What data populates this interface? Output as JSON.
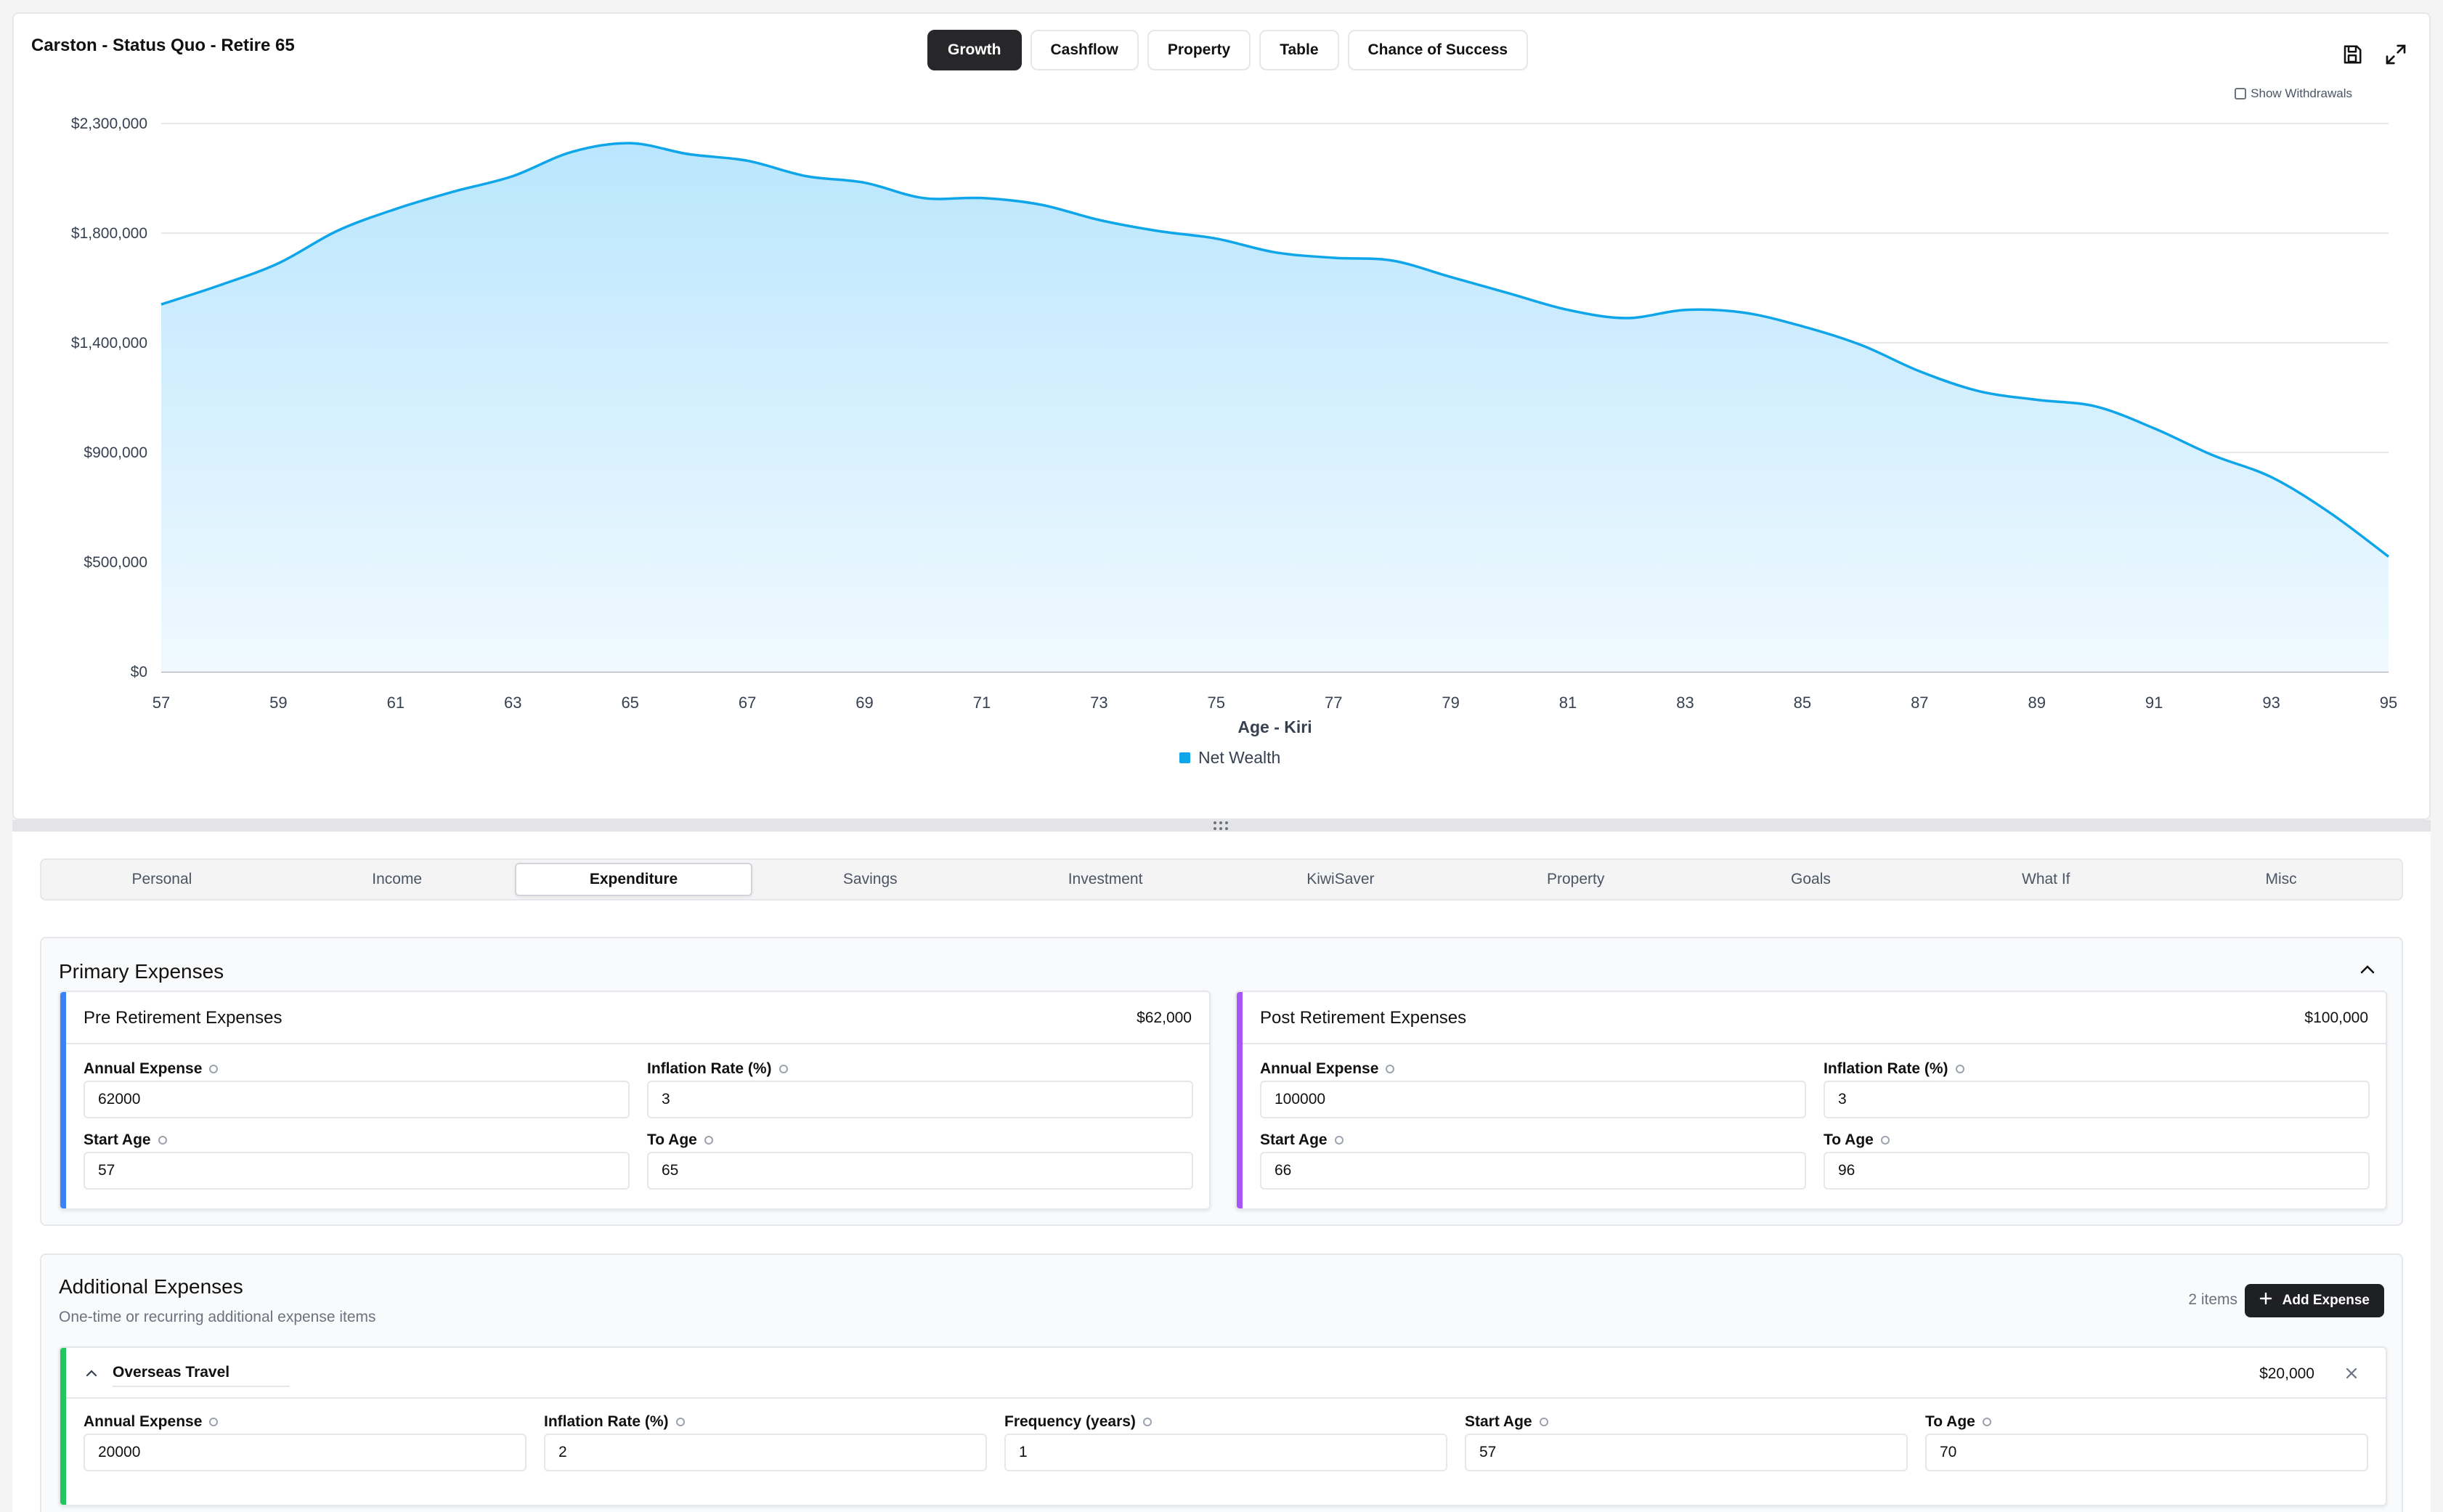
{
  "header": {
    "title": "Carston - Status Quo - Retire 65",
    "view_tabs": [
      "Growth",
      "Cashflow",
      "Property",
      "Table",
      "Chance of Success"
    ],
    "active_view": "Growth",
    "show_withdrawals_label": "Show Withdrawals",
    "show_withdrawals_checked": false,
    "icons": [
      "save-icon",
      "expand-icon"
    ]
  },
  "chart_data": {
    "type": "area",
    "title": "",
    "xlabel": "Age - Kiri",
    "ylabel": "",
    "x": [
      57,
      58,
      59,
      60,
      61,
      62,
      63,
      64,
      65,
      66,
      67,
      68,
      69,
      70,
      71,
      72,
      73,
      74,
      75,
      76,
      77,
      78,
      79,
      80,
      81,
      82,
      83,
      84,
      85,
      86,
      87,
      88,
      89,
      90,
      91,
      92,
      93,
      94,
      95
    ],
    "series": [
      {
        "name": "Net Wealth",
        "color": "#0ea5e9",
        "values": [
          1540000,
          1610000,
          1690000,
          1810000,
          1910000,
          1990000,
          2060000,
          2170000,
          2210000,
          2160000,
          2130000,
          2060000,
          2030000,
          1960000,
          1960000,
          1930000,
          1860000,
          1810000,
          1780000,
          1730000,
          1710000,
          1700000,
          1640000,
          1580000,
          1520000,
          1490000,
          1520000,
          1510000,
          1460000,
          1390000,
          1270000,
          1180000,
          1140000,
          1110000,
          1010000,
          890000,
          810000,
          680000,
          520000
        ]
      }
    ],
    "x_ticks": [
      "57",
      "59",
      "61",
      "63",
      "65",
      "67",
      "69",
      "71",
      "73",
      "75",
      "77",
      "79",
      "81",
      "83",
      "85",
      "87",
      "89",
      "91",
      "93",
      "95"
    ],
    "y_ticks": [
      {
        "value": 0,
        "label": "$0"
      },
      {
        "value": 500000,
        "label": "$500,000"
      },
      {
        "value": 900000,
        "label": "$900,000"
      },
      {
        "value": 1400000,
        "label": "$1,400,000"
      },
      {
        "value": 1800000,
        "label": "$1,800,000"
      },
      {
        "value": 2300000,
        "label": "$2,300,000"
      }
    ],
    "legend_position": "bottom-center",
    "grid": true
  },
  "section_tabs": [
    "Personal",
    "Income",
    "Expenditure",
    "Savings",
    "Investment",
    "KiwiSaver",
    "Property",
    "Goals",
    "What If",
    "Misc"
  ],
  "active_section": "Expenditure",
  "primary": {
    "title": "Primary Expenses",
    "pre": {
      "title": "Pre Retirement Expenses",
      "amount": "$62,000",
      "accent": "#3b82f6",
      "annual_label": "Annual Expense",
      "annual_value": "62000",
      "inflation_label": "Inflation Rate (%)",
      "inflation_value": "3",
      "start_label": "Start Age",
      "start_value": "57",
      "to_label": "To Age",
      "to_value": "65"
    },
    "post": {
      "title": "Post Retirement Expenses",
      "amount": "$100,000",
      "accent": "#a855f7",
      "annual_label": "Annual Expense",
      "annual_value": "100000",
      "inflation_label": "Inflation Rate (%)",
      "inflation_value": "3",
      "start_label": "Start Age",
      "start_value": "66",
      "to_label": "To Age",
      "to_value": "96"
    }
  },
  "additional": {
    "title": "Additional Expenses",
    "subtitle": "One-time or recurring additional expense items",
    "count": "2 items",
    "add_label": "Add Expense",
    "item": {
      "name": "Overseas Travel",
      "amount": "$20,000",
      "accent": "#22c55e",
      "annual_label": "Annual Expense",
      "annual_value": "20000",
      "inflation_label": "Inflation Rate (%)",
      "inflation_value": "2",
      "frequency_label": "Frequency (years)",
      "frequency_value": "1",
      "start_label": "Start Age",
      "start_value": "57",
      "to_label": "To Age",
      "to_value": "70"
    }
  }
}
